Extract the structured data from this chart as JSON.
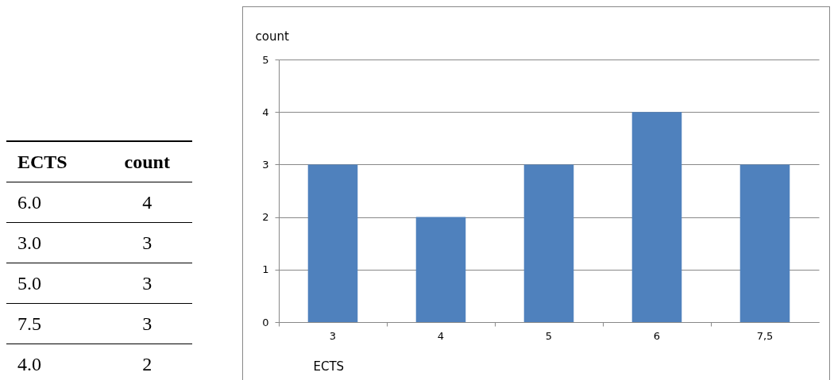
{
  "chart_data": [
    {
      "type": "other",
      "xlabel": "ECTS",
      "ylabel": "count",
      "annotations": [
        "6.0",
        "4",
        "3.0",
        "3",
        "5.0",
        "3",
        "7.5",
        "3",
        "4.0",
        "2"
      ]
    },
    {
      "type": "bar",
      "xlabel": "ECTS",
      "ylabel": "count",
      "categories": [
        "3",
        "4",
        "5",
        "6",
        "7,5"
      ],
      "values": [
        3,
        2,
        3,
        4,
        3
      ],
      "color": "#4f81bd",
      "ylim": [
        0,
        5
      ],
      "yticks": [
        0,
        1,
        2,
        3,
        4,
        5
      ],
      "grid": "y"
    }
  ]
}
